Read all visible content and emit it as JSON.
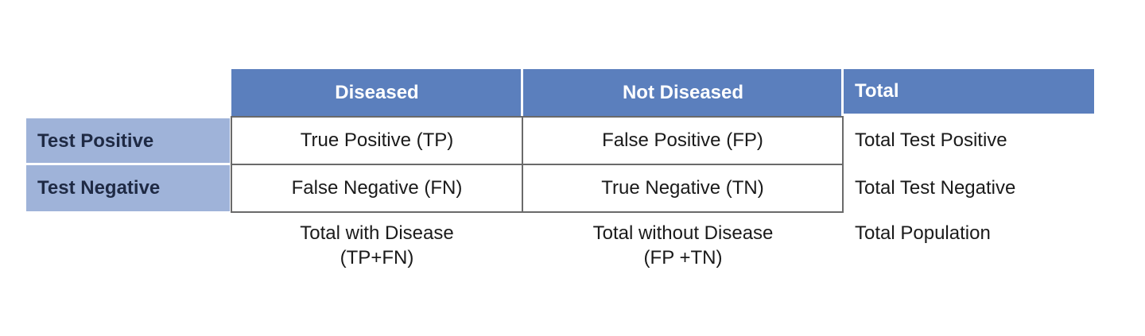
{
  "headers": {
    "diseased": "Diseased",
    "not_diseased": "Not Diseased",
    "total": "Total"
  },
  "rows": [
    {
      "label": "Test Positive",
      "diseased": "True Positive (TP)",
      "not_diseased": "False Positive (FP)",
      "total": "Total Test Positive"
    },
    {
      "label": "Test Negative",
      "diseased": "False Negative (FN)",
      "not_diseased": "True Negative (TN)",
      "total": "Total Test Negative"
    }
  ],
  "footer": {
    "diseased_line1": "Total with Disease",
    "diseased_line2": "(TP+FN)",
    "not_diseased_line1": "Total without Disease",
    "not_diseased_line2": "(FP +TN)",
    "total": "Total Population"
  },
  "colors": {
    "header_fill": "#5b7fbd",
    "row_label_fill": "#9fb3d9",
    "grid_border": "#6a6a6a"
  }
}
